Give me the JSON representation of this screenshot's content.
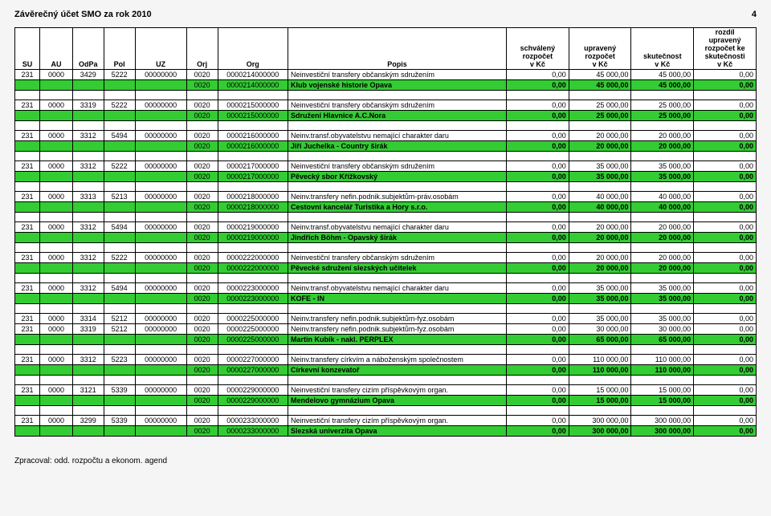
{
  "header": {
    "title": "Závěrečný účet SMO za rok 2010",
    "pageno": "4"
  },
  "footer": "Zpracoval: odd. rozpočtu a ekonom. agend",
  "columns": {
    "su": "SU",
    "au": "AU",
    "odpa": "OdPa",
    "pol": "Pol",
    "uz": "UZ",
    "orj": "Orj",
    "org": "Org",
    "popis": "Popis",
    "h1a": "schválený",
    "h1b": "rozpočet",
    "h1c": "v Kč",
    "h2a": "upravený",
    "h2b": "rozpočet",
    "h2c": "v Kč",
    "h3a": "skutečnost",
    "h3b": "v Kč",
    "h4a": "rozdíl",
    "h4b": "upravený",
    "h4c": "rozpočet ke",
    "h4d": "skutečnosti",
    "h4e": "v Kč"
  },
  "blocks": [
    {
      "rows": [
        {
          "su": "231",
          "au": "0000",
          "odpa": "3429",
          "pol": "5222",
          "uz": "00000000",
          "orj": "0020",
          "org": "0000214000000",
          "popis": "Neinvestiční transfery občanským sdružením",
          "v1": "0,00",
          "v2": "45 000,00",
          "v3": "45 000,00",
          "v4": "0,00"
        }
      ],
      "sum": {
        "orj": "0020",
        "org": "0000214000000",
        "popis": "Klub vojenské historie Opava",
        "v1": "0,00",
        "v2": "45 000,00",
        "v3": "45 000,00",
        "v4": "0,00"
      }
    },
    {
      "rows": [
        {
          "su": "231",
          "au": "0000",
          "odpa": "3319",
          "pol": "5222",
          "uz": "00000000",
          "orj": "0020",
          "org": "0000215000000",
          "popis": "Neinvestiční transfery občanským sdružením",
          "v1": "0,00",
          "v2": "25 000,00",
          "v3": "25 000,00",
          "v4": "0,00"
        }
      ],
      "sum": {
        "orj": "0020",
        "org": "0000215000000",
        "popis": "Sdružení Hlavnice A.C.Nora",
        "v1": "0,00",
        "v2": "25 000,00",
        "v3": "25 000,00",
        "v4": "0,00"
      }
    },
    {
      "rows": [
        {
          "su": "231",
          "au": "0000",
          "odpa": "3312",
          "pol": "5494",
          "uz": "00000000",
          "orj": "0020",
          "org": "0000216000000",
          "popis": "Neinv.transf.obyvatelstvu nemající charakter daru",
          "v1": "0,00",
          "v2": "20 000,00",
          "v3": "20 000,00",
          "v4": "0,00"
        }
      ],
      "sum": {
        "orj": "0020",
        "org": "0000216000000",
        "popis": "Jiří Juchelka - Country širák",
        "v1": "0,00",
        "v2": "20 000,00",
        "v3": "20 000,00",
        "v4": "0,00"
      }
    },
    {
      "rows": [
        {
          "su": "231",
          "au": "0000",
          "odpa": "3312",
          "pol": "5222",
          "uz": "00000000",
          "orj": "0020",
          "org": "0000217000000",
          "popis": "Neinvestiční transfery občanským sdružením",
          "v1": "0,00",
          "v2": "35 000,00",
          "v3": "35 000,00",
          "v4": "0,00"
        }
      ],
      "sum": {
        "orj": "0020",
        "org": "0000217000000",
        "popis": "Pěvecký sbor Křížkovský",
        "v1": "0,00",
        "v2": "35 000,00",
        "v3": "35 000,00",
        "v4": "0,00"
      }
    },
    {
      "rows": [
        {
          "su": "231",
          "au": "0000",
          "odpa": "3313",
          "pol": "5213",
          "uz": "00000000",
          "orj": "0020",
          "org": "0000218000000",
          "popis": "Neinv.transfery nefin.podnik.subjektům-práv.osobám",
          "v1": "0,00",
          "v2": "40 000,00",
          "v3": "40 000,00",
          "v4": "0,00"
        }
      ],
      "sum": {
        "orj": "0020",
        "org": "0000218000000",
        "popis": "Cestovní kancelář Turistika a Hory s.r.o.",
        "v1": "0,00",
        "v2": "40 000,00",
        "v3": "40 000,00",
        "v4": "0,00"
      }
    },
    {
      "rows": [
        {
          "su": "231",
          "au": "0000",
          "odpa": "3312",
          "pol": "5494",
          "uz": "00000000",
          "orj": "0020",
          "org": "0000219000000",
          "popis": "Neinv.transf.obyvatelstvu nemající charakter daru",
          "v1": "0,00",
          "v2": "20 000,00",
          "v3": "20 000,00",
          "v4": "0,00"
        }
      ],
      "sum": {
        "orj": "0020",
        "org": "0000219000000",
        "popis": "Jindřich Böhm - Opavský širák",
        "v1": "0,00",
        "v2": "20 000,00",
        "v3": "20 000,00",
        "v4": "0,00"
      }
    },
    {
      "rows": [
        {
          "su": "231",
          "au": "0000",
          "odpa": "3312",
          "pol": "5222",
          "uz": "00000000",
          "orj": "0020",
          "org": "0000222000000",
          "popis": "Neinvestiční transfery občanským sdružením",
          "v1": "0,00",
          "v2": "20 000,00",
          "v3": "20 000,00",
          "v4": "0,00"
        }
      ],
      "sum": {
        "orj": "0020",
        "org": "0000222000000",
        "popis": "Pěvecké sdružení slezských učitelek",
        "v1": "0,00",
        "v2": "20 000,00",
        "v3": "20 000,00",
        "v4": "0,00"
      }
    },
    {
      "rows": [
        {
          "su": "231",
          "au": "0000",
          "odpa": "3312",
          "pol": "5494",
          "uz": "00000000",
          "orj": "0020",
          "org": "0000223000000",
          "popis": "Neinv.transf.obyvatelstvu nemající charakter daru",
          "v1": "0,00",
          "v2": "35 000,00",
          "v3": "35 000,00",
          "v4": "0,00"
        }
      ],
      "sum": {
        "orj": "0020",
        "org": "0000223000000",
        "popis": "KOFE - IN",
        "v1": "0,00",
        "v2": "35 000,00",
        "v3": "35 000,00",
        "v4": "0,00"
      }
    },
    {
      "rows": [
        {
          "su": "231",
          "au": "0000",
          "odpa": "3314",
          "pol": "5212",
          "uz": "00000000",
          "orj": "0020",
          "org": "0000225000000",
          "popis": "Neinv.transfery nefin.podnik.subjektům-fyz.osobám",
          "v1": "0,00",
          "v2": "35 000,00",
          "v3": "35 000,00",
          "v4": "0,00"
        },
        {
          "su": "231",
          "au": "0000",
          "odpa": "3319",
          "pol": "5212",
          "uz": "00000000",
          "orj": "0020",
          "org": "0000225000000",
          "popis": "Neinv.transfery nefin.podnik.subjektům-fyz.osobám",
          "v1": "0,00",
          "v2": "30 000,00",
          "v3": "30 000,00",
          "v4": "0,00"
        }
      ],
      "sum": {
        "orj": "0020",
        "org": "0000225000000",
        "popis": "Martin Kubík - nakl. PERPLEX",
        "v1": "0,00",
        "v2": "65 000,00",
        "v3": "65 000,00",
        "v4": "0,00"
      }
    },
    {
      "rows": [
        {
          "su": "231",
          "au": "0000",
          "odpa": "3312",
          "pol": "5223",
          "uz": "00000000",
          "orj": "0020",
          "org": "0000227000000",
          "popis": "Neinv.transfery církvím a náboženským společnostem",
          "v1": "0,00",
          "v2": "110 000,00",
          "v3": "110 000,00",
          "v4": "0,00"
        }
      ],
      "sum": {
        "orj": "0020",
        "org": "0000227000000",
        "popis": "Církevní konzevatoř",
        "v1": "0,00",
        "v2": "110 000,00",
        "v3": "110 000,00",
        "v4": "0,00"
      }
    },
    {
      "rows": [
        {
          "su": "231",
          "au": "0000",
          "odpa": "3121",
          "pol": "5339",
          "uz": "00000000",
          "orj": "0020",
          "org": "0000229000000",
          "popis": "Neinvestiční transfery cizím příspěvkovým organ.",
          "v1": "0,00",
          "v2": "15 000,00",
          "v3": "15 000,00",
          "v4": "0,00"
        }
      ],
      "sum": {
        "orj": "0020",
        "org": "0000229000000",
        "popis": "Mendelovo gymnázium Opava",
        "v1": "0,00",
        "v2": "15 000,00",
        "v3": "15 000,00",
        "v4": "0,00"
      }
    },
    {
      "rows": [
        {
          "su": "231",
          "au": "0000",
          "odpa": "3299",
          "pol": "5339",
          "uz": "00000000",
          "orj": "0020",
          "org": "0000233000000",
          "popis": "Neinvestiční transfery cizím příspěvkovým organ.",
          "v1": "0,00",
          "v2": "300 000,00",
          "v3": "300 000,00",
          "v4": "0,00"
        }
      ],
      "sum": {
        "orj": "0020",
        "org": "0000233000000",
        "popis": "Slezská univerzita Opava",
        "v1": "0,00",
        "v2": "300 000,00",
        "v3": "300 000,00",
        "v4": "0,00"
      }
    }
  ]
}
